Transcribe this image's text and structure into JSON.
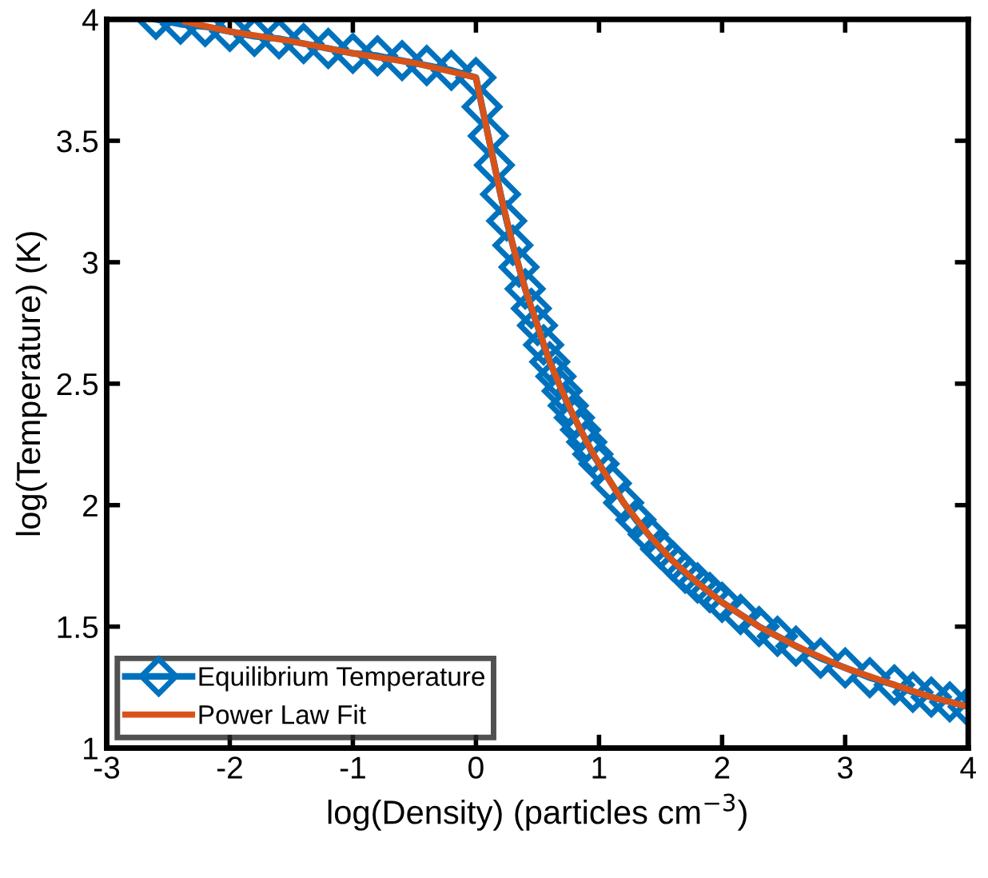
{
  "chart_data": {
    "type": "line",
    "xlabel": "log(Density) (particles cm$^{−3}$)",
    "ylabel": "log(Temperature) (K)",
    "xlim": [
      -3,
      4
    ],
    "xticks": [
      -3,
      -2,
      -1,
      0,
      1,
      2,
      3,
      4
    ],
    "ylim": [
      1,
      4
    ],
    "yticks": [
      1,
      1.5,
      2,
      2.5,
      3,
      3.5,
      4
    ],
    "grid": false,
    "legend": "bottom left",
    "series": [
      {
        "name": "Equilibrium Temperature",
        "color": "#0072bd",
        "marker": "diamond",
        "line_style": "solid",
        "x": [
          -2.6,
          -2.4,
          -2.2,
          -2.0,
          -1.8,
          -1.6,
          -1.4,
          -1.2,
          -1.0,
          -0.8,
          -0.6,
          -0.4,
          -0.2,
          0.0,
          0.05,
          0.1,
          0.15,
          0.2,
          0.25,
          0.3,
          0.35,
          0.4,
          0.45,
          0.5,
          0.55,
          0.6,
          0.65,
          0.7,
          0.75,
          0.8,
          0.85,
          0.9,
          0.95,
          1.0,
          1.1,
          1.2,
          1.3,
          1.4,
          1.5,
          1.6,
          1.7,
          1.8,
          1.9,
          2.0,
          2.15,
          2.3,
          2.45,
          2.6,
          2.8,
          3.0,
          3.2,
          3.4,
          3.55,
          3.7,
          3.85,
          4.0
        ],
        "values": [
          4.0,
          3.98,
          3.97,
          3.95,
          3.93,
          3.92,
          3.9,
          3.88,
          3.86,
          3.85,
          3.83,
          3.81,
          3.79,
          3.76,
          3.64,
          3.52,
          3.4,
          3.28,
          3.17,
          3.07,
          2.98,
          2.89,
          2.81,
          2.74,
          2.66,
          2.59,
          2.53,
          2.47,
          2.41,
          2.36,
          2.31,
          2.26,
          2.21,
          2.17,
          2.09,
          2.01,
          1.94,
          1.88,
          1.82,
          1.77,
          1.72,
          1.68,
          1.64,
          1.6,
          1.55,
          1.5,
          1.46,
          1.42,
          1.37,
          1.33,
          1.29,
          1.26,
          1.23,
          1.21,
          1.19,
          1.17
        ]
      },
      {
        "name": "Power Law Fit",
        "color": "#d95319",
        "marker": "none",
        "line_style": "solid",
        "x": [
          -2.36,
          -2.0,
          -1.5,
          -1.0,
          -0.5,
          0.0,
          0.1,
          0.2,
          0.3,
          0.4,
          0.5,
          0.6,
          0.7,
          0.8,
          0.9,
          1.0,
          1.2,
          1.4,
          1.6,
          1.8,
          2.0,
          2.3,
          2.6,
          3.0,
          3.4,
          3.7,
          4.0
        ],
        "values": [
          3.99,
          3.95,
          3.91,
          3.86,
          3.82,
          3.76,
          3.52,
          3.28,
          3.07,
          2.89,
          2.74,
          2.59,
          2.47,
          2.36,
          2.26,
          2.17,
          2.01,
          1.88,
          1.77,
          1.68,
          1.6,
          1.5,
          1.42,
          1.33,
          1.26,
          1.21,
          1.17
        ]
      }
    ]
  }
}
